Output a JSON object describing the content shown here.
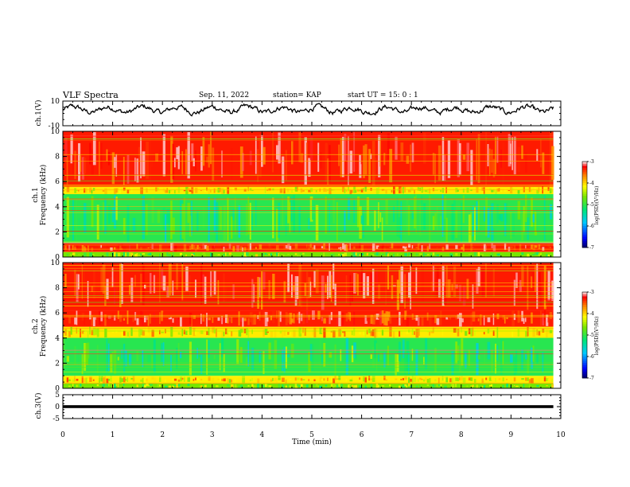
{
  "header": {
    "title": "VLF Spectra",
    "date": "Sep. 11, 2022",
    "station": "station= KAP",
    "start": "start  UT =   15: 0  : 1"
  },
  "chart_data": [
    {
      "type": "line",
      "panel": "ch1-waveform",
      "ylabel": "ch.1(V)",
      "ylim": [
        -10,
        10
      ],
      "yticks": [
        "10",
        "-10"
      ],
      "xlim": [
        0,
        10
      ],
      "series": [
        {
          "color": "#000000",
          "description_level": 3,
          "range": [
            -2,
            8
          ]
        }
      ]
    },
    {
      "type": "heatmap",
      "panel": "ch1-spectrogram",
      "ylabel": "ch.1\nFrequency (kHz)",
      "ylabel_line1": "ch.1",
      "ylabel_line2": "Frequency  (kHz)",
      "ylim": [
        0,
        10
      ],
      "yticks": [
        "0",
        "2",
        "4",
        "6",
        "8",
        "10"
      ],
      "xlim": [
        0,
        10
      ],
      "data_end_min": 9.85,
      "bands": [
        {
          "from_khz": 0,
          "to_khz": 0.4,
          "level": "mixed"
        },
        {
          "from_khz": 0.4,
          "to_khz": 1.1,
          "level": "high"
        },
        {
          "from_khz": 1.1,
          "to_khz": 5.0,
          "level": "low"
        },
        {
          "from_khz": 5.0,
          "to_khz": 5.6,
          "level": "mid"
        },
        {
          "from_khz": 5.6,
          "to_khz": 10,
          "level": "high"
        }
      ],
      "colorbar": {
        "label": "log(PSD)(V²/Hz)",
        "ticks": [
          "-3",
          "-4",
          "-5",
          "-6",
          "-7"
        ],
        "range": [
          -7,
          -3
        ]
      }
    },
    {
      "type": "heatmap",
      "panel": "ch2-spectrogram",
      "ylabel_line1": "ch.2",
      "ylabel_line2": "Frequency  (kHz)",
      "ylim": [
        0,
        10
      ],
      "yticks": [
        "0",
        "2",
        "4",
        "6",
        "8",
        "10"
      ],
      "xlim": [
        0,
        10
      ],
      "data_end_min": 9.85,
      "bands": [
        {
          "from_khz": 0,
          "to_khz": 0.4,
          "level": "mixed"
        },
        {
          "from_khz": 0.4,
          "to_khz": 1.0,
          "level": "mid"
        },
        {
          "from_khz": 1.0,
          "to_khz": 4.0,
          "level": "low"
        },
        {
          "from_khz": 4.0,
          "to_khz": 4.9,
          "level": "mid"
        },
        {
          "from_khz": 4.9,
          "to_khz": 6.2,
          "level": "high"
        },
        {
          "from_khz": 6.2,
          "to_khz": 10,
          "level": "high"
        }
      ],
      "colorbar": {
        "label": "log(PSD)(V²/Hz)",
        "ticks": [
          "-3",
          "-4",
          "-5",
          "-6",
          "-7"
        ],
        "range": [
          -7,
          -3
        ]
      }
    },
    {
      "type": "line",
      "panel": "ch3-waveform",
      "ylabel": "ch.3(V)",
      "ylim": [
        -5,
        5
      ],
      "yticks": [
        "5",
        "0",
        "-5"
      ],
      "xlim": [
        0,
        10
      ],
      "xlabel": "Time  (min)",
      "xticks": [
        "0",
        "1",
        "2",
        "3",
        "4",
        "5",
        "6",
        "7",
        "8",
        "9",
        "10"
      ],
      "series": [
        {
          "color": "#000000",
          "band": [
            -0.6,
            0.6
          ]
        }
      ]
    }
  ]
}
